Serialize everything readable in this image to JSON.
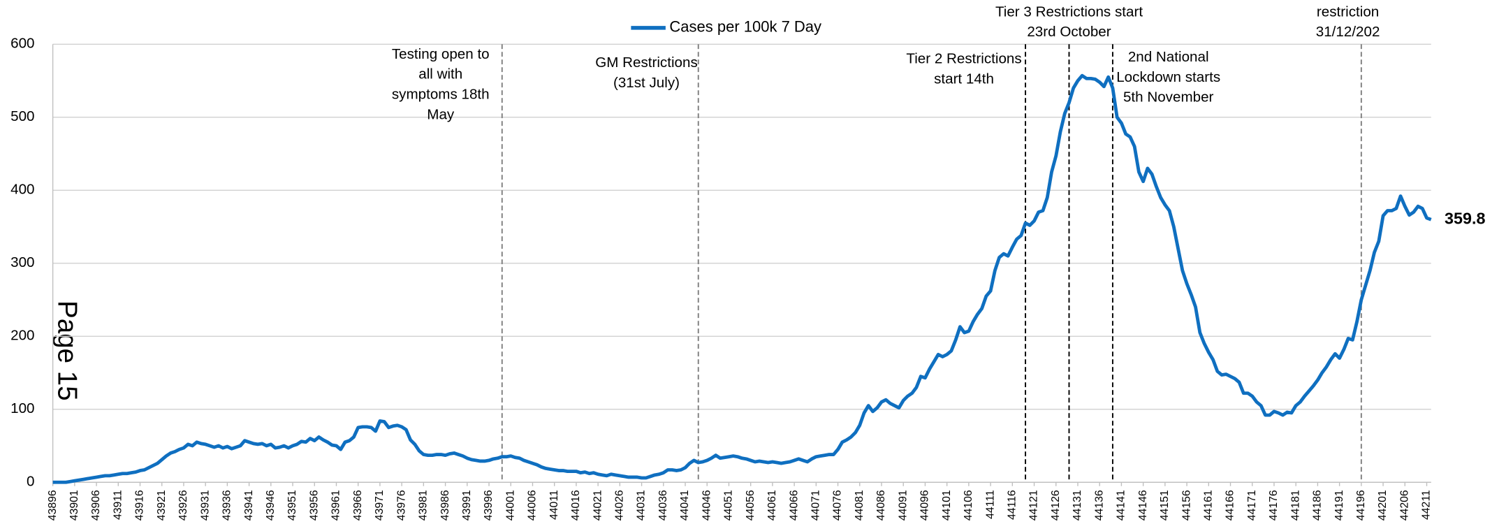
{
  "chart_data": {
    "type": "line",
    "legend": "top",
    "page_label": "Page 15",
    "xlim": [
      43896,
      44212
    ],
    "ylim": [
      0,
      600
    ],
    "yticks": [
      0,
      100,
      200,
      300,
      400,
      500,
      600
    ],
    "grid": true,
    "xticks": [
      43896,
      43901,
      43906,
      43911,
      43916,
      43921,
      43926,
      43931,
      43936,
      43941,
      43946,
      43951,
      43956,
      43961,
      43966,
      43971,
      43976,
      43981,
      43986,
      43991,
      43996,
      44001,
      44006,
      44011,
      44016,
      44021,
      44026,
      44031,
      44036,
      44041,
      44046,
      44051,
      44056,
      44061,
      44066,
      44071,
      44076,
      44081,
      44086,
      44091,
      44096,
      44101,
      44106,
      44111,
      44116,
      44121,
      44126,
      44131,
      44136,
      44141,
      44146,
      44151,
      44156,
      44161,
      44166,
      44171,
      44176,
      44181,
      44186,
      44191,
      44196,
      44201,
      44206,
      44211
    ],
    "x": [
      43896,
      43897,
      43898,
      43899,
      43900,
      43901,
      43902,
      43903,
      43904,
      43905,
      43906,
      43907,
      43908,
      43909,
      43910,
      43911,
      43912,
      43913,
      43914,
      43915,
      43916,
      43917,
      43918,
      43919,
      43920,
      43921,
      43922,
      43923,
      43924,
      43925,
      43926,
      43927,
      43928,
      43929,
      43930,
      43931,
      43932,
      43933,
      43934,
      43935,
      43936,
      43937,
      43938,
      43939,
      43940,
      43941,
      43942,
      43943,
      43944,
      43945,
      43946,
      43947,
      43948,
      43949,
      43950,
      43951,
      43952,
      43953,
      43954,
      43955,
      43956,
      43957,
      43958,
      43959,
      43960,
      43961,
      43962,
      43963,
      43964,
      43965,
      43966,
      43967,
      43968,
      43969,
      43970,
      43971,
      43972,
      43973,
      43974,
      43975,
      43976,
      43977,
      43978,
      43979,
      43980,
      43981,
      43982,
      43983,
      43984,
      43985,
      43986,
      43987,
      43988,
      43989,
      43990,
      43991,
      43992,
      43993,
      43994,
      43995,
      43996,
      43997,
      43998,
      43999,
      44000,
      44001,
      44002,
      44003,
      44004,
      44005,
      44006,
      44007,
      44008,
      44009,
      44010,
      44011,
      44012,
      44013,
      44014,
      44015,
      44016,
      44017,
      44018,
      44019,
      44020,
      44021,
      44022,
      44023,
      44024,
      44025,
      44026,
      44027,
      44028,
      44029,
      44030,
      44031,
      44032,
      44033,
      44034,
      44035,
      44036,
      44037,
      44038,
      44039,
      44040,
      44041,
      44042,
      44043,
      44044,
      44045,
      44046,
      44047,
      44048,
      44049,
      44050,
      44051,
      44052,
      44053,
      44054,
      44055,
      44056,
      44057,
      44058,
      44059,
      44060,
      44061,
      44062,
      44063,
      44064,
      44065,
      44066,
      44067,
      44068,
      44069,
      44070,
      44071,
      44072,
      44073,
      44074,
      44075,
      44076,
      44077,
      44078,
      44079,
      44080,
      44081,
      44082,
      44083,
      44084,
      44085,
      44086,
      44087,
      44088,
      44089,
      44090,
      44091,
      44092,
      44093,
      44094,
      44095,
      44096,
      44097,
      44098,
      44099,
      44100,
      44101,
      44102,
      44103,
      44104,
      44105,
      44106,
      44107,
      44108,
      44109,
      44110,
      44111,
      44112,
      44113,
      44114,
      44115,
      44116,
      44117,
      44118,
      44119,
      44120,
      44121,
      44122,
      44123,
      44124,
      44125,
      44126,
      44127,
      44128,
      44129,
      44130,
      44131,
      44132,
      44133,
      44134,
      44135,
      44136,
      44137,
      44138,
      44139,
      44140,
      44141,
      44142,
      44143,
      44144,
      44145,
      44146,
      44147,
      44148,
      44149,
      44150,
      44151,
      44152,
      44153,
      44154,
      44155,
      44156,
      44157,
      44158,
      44159,
      44160,
      44161,
      44162,
      44163,
      44164,
      44165,
      44166,
      44167,
      44168,
      44169,
      44170,
      44171,
      44172,
      44173,
      44174,
      44175,
      44176,
      44177,
      44178,
      44179,
      44180,
      44181,
      44182,
      44183,
      44184,
      44185,
      44186,
      44187,
      44188,
      44189,
      44190,
      44191,
      44192,
      44193,
      44194,
      44195,
      44196,
      44197,
      44198,
      44199,
      44200,
      44201,
      44202,
      44203,
      44204,
      44205,
      44206,
      44207,
      44208,
      44209,
      44210,
      44211,
      44212
    ],
    "series": [
      {
        "name": "Cases per 100k 7 Day",
        "color": "#0f6fc0",
        "values": [
          0,
          0,
          0,
          0,
          1,
          2,
          3,
          4,
          5,
          6,
          7,
          8,
          9,
          9,
          10,
          11,
          12,
          12,
          13,
          14,
          16,
          17,
          20,
          23,
          26,
          31,
          36,
          40,
          42,
          45,
          47,
          52,
          50,
          55,
          53,
          52,
          50,
          48,
          50,
          47,
          49,
          46,
          48,
          50,
          57,
          55,
          53,
          52,
          53,
          50,
          52,
          47,
          48,
          50,
          47,
          50,
          52,
          56,
          55,
          60,
          57,
          62,
          58,
          55,
          51,
          50,
          45,
          55,
          57,
          62,
          75,
          76,
          76,
          75,
          70,
          84,
          83,
          75,
          77,
          78,
          76,
          72,
          58,
          52,
          43,
          38,
          37,
          37,
          38,
          38,
          37,
          39,
          40,
          38,
          36,
          33,
          31,
          30,
          29,
          29,
          30,
          32,
          33,
          35,
          35,
          36,
          34,
          33,
          30,
          28,
          26,
          24,
          21,
          19,
          18,
          17,
          16,
          16,
          15,
          15,
          15,
          13,
          14,
          12,
          13,
          11,
          10,
          9,
          11,
          10,
          9,
          8,
          7,
          7,
          7,
          6,
          6,
          8,
          10,
          11,
          13,
          17,
          17,
          16,
          17,
          20,
          26,
          30,
          27,
          28,
          30,
          33,
          37,
          33,
          34,
          35,
          36,
          35,
          33,
          32,
          30,
          28,
          29,
          28,
          27,
          28,
          27,
          26,
          27,
          28,
          30,
          32,
          30,
          28,
          32,
          35,
          36,
          37,
          38,
          38,
          45,
          55,
          58,
          62,
          68,
          78,
          95,
          105,
          97,
          102,
          110,
          113,
          108,
          105,
          102,
          112,
          118,
          122,
          130,
          145,
          143,
          155,
          165,
          175,
          172,
          175,
          180,
          195,
          213,
          205,
          207,
          220,
          230,
          238,
          255,
          262,
          290,
          308,
          313,
          310,
          322,
          333,
          338,
          355,
          352,
          358,
          370,
          372,
          390,
          425,
          447,
          480,
          505,
          520,
          540,
          550,
          557,
          553,
          553,
          552,
          548,
          542,
          555,
          540,
          500,
          492,
          477,
          473,
          460,
          425,
          412,
          430,
          422,
          405,
          390,
          380,
          372,
          350,
          320,
          290,
          272,
          257,
          240,
          205,
          190,
          178,
          168,
          152,
          147,
          148,
          145,
          142,
          137,
          122,
          122,
          118,
          110,
          105,
          92,
          92,
          97,
          95,
          92,
          96,
          95,
          105,
          110,
          118,
          125,
          132,
          140,
          150,
          158,
          168,
          176,
          170,
          182,
          197,
          195,
          220,
          250,
          270,
          290,
          315,
          330,
          365,
          372,
          372,
          375,
          392,
          378,
          366,
          370,
          378,
          375,
          362,
          359.8
        ]
      }
    ],
    "annotations": [
      {
        "x": 43999,
        "color": "#7f7f7f",
        "lines": [
          "Testing open to",
          "all with",
          "symptoms 18th",
          "May"
        ]
      },
      {
        "x": 44044,
        "color": "#7f7f7f",
        "lines": [
          "GM Restrictions",
          "(31st July)"
        ]
      },
      {
        "x": 44119,
        "color": "#000000",
        "lines": [
          "Tier 2 Restrictions",
          "start 14th"
        ]
      },
      {
        "x": 44129,
        "color": "#000000",
        "lines": [
          "Tier 3 Restrictions start",
          "23rd October"
        ]
      },
      {
        "x": 44139,
        "color": "#000000",
        "lines": [
          "2nd National",
          "Lockdown starts",
          "5th November"
        ]
      },
      {
        "x": 44196,
        "color": "#7f7f7f",
        "lines": [
          "restriction",
          "31/12/202"
        ]
      }
    ]
  }
}
